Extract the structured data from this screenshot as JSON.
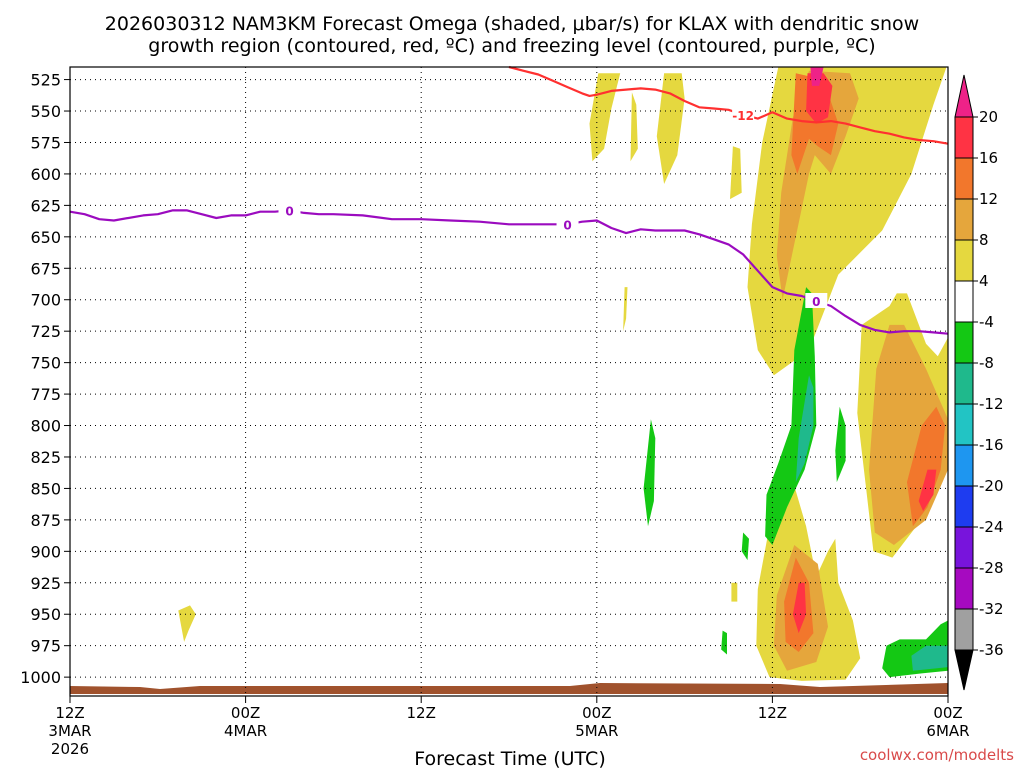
{
  "chart_data": {
    "type": "heatmap",
    "title_line1": "2026030312 NAM3KM Forecast Omega (shaded, μbar/s) for KLAX with dendritic snow",
    "title_line2": "growth region (contoured, red, ºC) and freezing level (contoured, purple, ºC)",
    "xlabel": "Forecast Time (UTC)",
    "credit": "coolwx.com/modelts",
    "ylevels": [
      525,
      550,
      575,
      600,
      625,
      650,
      675,
      700,
      725,
      750,
      775,
      800,
      825,
      850,
      875,
      900,
      925,
      950,
      975,
      1000
    ],
    "ylim": [
      515,
      1015
    ],
    "x_range_hours": [
      0,
      60
    ],
    "x_ticks": [
      {
        "hour": 0,
        "l1": "12Z",
        "l2": "3MAR",
        "l3": "2026"
      },
      {
        "hour": 12,
        "l1": "00Z",
        "l2": "4MAR",
        "l3": ""
      },
      {
        "hour": 24,
        "l1": "12Z",
        "l2": "",
        "l3": ""
      },
      {
        "hour": 36,
        "l1": "00Z",
        "l2": "5MAR",
        "l3": ""
      },
      {
        "hour": 48,
        "l1": "12Z",
        "l2": "",
        "l3": ""
      },
      {
        "hour": 60,
        "l1": "00Z",
        "l2": "6MAR",
        "l3": ""
      }
    ],
    "colorbar": {
      "labels": [
        "20",
        "16",
        "12",
        "8",
        "4",
        "-4",
        "-8",
        "-12",
        "-16",
        "-20",
        "-24",
        "-28",
        "-32",
        "-36"
      ],
      "colors": [
        "#ee2288",
        "#ff3344",
        "#f2772c",
        "#e5a63c",
        "#e5d83f",
        "#ffffff",
        "#14c814",
        "#1fb98c",
        "#22c4c4",
        "#1e96f0",
        "#1e3cf0",
        "#7814dc",
        "#a60ac0",
        "#a0a0a0",
        "#000000"
      ]
    },
    "freezing_level": {
      "name": "freezing level (purple)",
      "label": "0",
      "color": "#9b0bbf",
      "hours": [
        0,
        1,
        2,
        3,
        5,
        6,
        7,
        8,
        9,
        10,
        11,
        12,
        13,
        14,
        15,
        16,
        17,
        18,
        20,
        22,
        24,
        26,
        28,
        30,
        31,
        32,
        34,
        35,
        36,
        37,
        38,
        39,
        40,
        41,
        42,
        43,
        44,
        45,
        46,
        47,
        48,
        49,
        50,
        51,
        52,
        53,
        54,
        55,
        56,
        57,
        58,
        59,
        60
      ],
      "pressure": [
        630,
        632,
        636,
        637,
        633,
        632,
        629,
        629,
        632,
        635,
        633,
        633,
        630,
        630,
        629,
        631,
        632,
        632,
        633,
        636,
        636,
        637,
        638,
        640,
        640,
        640,
        640,
        638,
        637,
        643,
        647,
        644,
        645,
        645,
        645,
        648,
        652,
        656,
        664,
        677,
        690,
        695,
        697,
        701,
        705,
        713,
        720,
        724,
        726,
        725,
        725,
        726,
        727
      ]
    },
    "dgz_contour": {
      "name": "dendritic snow growth region (red)",
      "label": "-12",
      "color": "#ff3030",
      "hours": [
        30,
        31,
        32,
        33,
        34,
        35,
        35.5,
        36,
        37,
        38,
        39,
        40,
        41,
        42,
        43,
        44,
        45,
        46,
        47,
        48,
        49,
        50,
        51,
        52,
        53,
        54,
        55,
        56,
        57,
        58,
        59,
        60
      ],
      "pressure": [
        515,
        518,
        521,
        526,
        531,
        536,
        538,
        537,
        534,
        533,
        532,
        533,
        536,
        542,
        547,
        548,
        549,
        553,
        556,
        551,
        556,
        558,
        559,
        558,
        560,
        563,
        566,
        568,
        571,
        573,
        574,
        576
      ]
    },
    "omega_regions": [
      {
        "value": 4,
        "color": "#e5d83f",
        "pts": [
          [
            36.1,
            520
          ],
          [
            35.5,
            560
          ],
          [
            35.7,
            590
          ],
          [
            36.5,
            580
          ],
          [
            37.0,
            548
          ],
          [
            37.6,
            520
          ]
        ]
      },
      {
        "value": 4,
        "color": "#e5d83f",
        "pts": [
          [
            40.6,
            520
          ],
          [
            40.1,
            570
          ],
          [
            40.6,
            608
          ],
          [
            41.5,
            585
          ],
          [
            42.0,
            540
          ],
          [
            41.8,
            520
          ]
        ]
      },
      {
        "value": 4,
        "color": "#e5d83f",
        "pts": [
          [
            38.4,
            535
          ],
          [
            38.3,
            590
          ],
          [
            38.8,
            580
          ],
          [
            38.7,
            545
          ]
        ]
      },
      {
        "value": 4,
        "color": "#e5d83f",
        "pts": [
          [
            45.3,
            578
          ],
          [
            45.1,
            620
          ],
          [
            45.9,
            615
          ],
          [
            45.8,
            580
          ]
        ]
      },
      {
        "value": 4,
        "color": "#e5d83f",
        "pts": [
          [
            48.4,
            515
          ],
          [
            47.3,
            575
          ],
          [
            46.6,
            640
          ],
          [
            46.3,
            690
          ],
          [
            47.0,
            740
          ],
          [
            48.1,
            760
          ],
          [
            50.5,
            740
          ],
          [
            52.5,
            680
          ],
          [
            55.5,
            645
          ],
          [
            57.5,
            600
          ],
          [
            59.0,
            545
          ],
          [
            59.9,
            515
          ]
        ]
      },
      {
        "value": 4,
        "color": "#e5d83f",
        "pts": [
          [
            37.9,
            690
          ],
          [
            37.8,
            725
          ],
          [
            38.0,
            715
          ],
          [
            38.1,
            690
          ]
        ]
      },
      {
        "value": 4,
        "color": "#e5d83f",
        "pts": [
          [
            54.1,
            720
          ],
          [
            53.8,
            790
          ],
          [
            54.4,
            850
          ],
          [
            54.9,
            900
          ],
          [
            56.2,
            905
          ],
          [
            58.5,
            870
          ],
          [
            60,
            820
          ],
          [
            60,
            730
          ],
          [
            59.3,
            745
          ],
          [
            58.5,
            735
          ],
          [
            57.2,
            695
          ],
          [
            56.5,
            695
          ],
          [
            56.0,
            705
          ]
        ]
      },
      {
        "value": 4,
        "color": "#e5d83f",
        "pts": [
          [
            49.3,
            840
          ],
          [
            47.8,
            880
          ],
          [
            47.0,
            930
          ],
          [
            46.9,
            975
          ],
          [
            47.8,
            1000
          ],
          [
            50.0,
            1003
          ],
          [
            53.0,
            1002
          ],
          [
            54.0,
            985
          ],
          [
            53.5,
            955
          ],
          [
            52.5,
            925
          ],
          [
            52.3,
            890
          ],
          [
            51.8,
            900
          ],
          [
            51.0,
            920
          ],
          [
            50.3,
            880
          ]
        ]
      },
      {
        "value": 4,
        "color": "#e5d83f",
        "pts": [
          [
            45.2,
            925
          ],
          [
            45.2,
            940
          ],
          [
            45.6,
            940
          ],
          [
            45.6,
            925
          ]
        ]
      },
      {
        "value": 4,
        "color": "#e5d83f",
        "pts": [
          [
            7.4,
            947
          ],
          [
            7.8,
            972
          ],
          [
            8.1,
            963
          ],
          [
            8.6,
            950
          ],
          [
            8.2,
            943
          ]
        ]
      },
      {
        "value": 8,
        "color": "#e5a63c",
        "pts": [
          [
            49.4,
            555
          ],
          [
            48.6,
            615
          ],
          [
            48.3,
            665
          ],
          [
            48.7,
            700
          ],
          [
            49.6,
            650
          ],
          [
            50.5,
            600
          ],
          [
            50.9,
            585
          ],
          [
            52.0,
            600
          ],
          [
            53.0,
            570
          ],
          [
            53.9,
            540
          ],
          [
            53.3,
            520
          ],
          [
            50.5,
            518
          ]
        ]
      },
      {
        "value": 8,
        "color": "#e5a63c",
        "pts": [
          [
            55.1,
            755
          ],
          [
            54.6,
            835
          ],
          [
            55.0,
            885
          ],
          [
            56.3,
            895
          ],
          [
            58.5,
            875
          ],
          [
            60,
            835
          ],
          [
            60,
            795
          ],
          [
            58.5,
            755
          ],
          [
            57.0,
            720
          ],
          [
            56.0,
            720
          ]
        ]
      },
      {
        "value": 8,
        "color": "#e5a63c",
        "pts": [
          [
            49.5,
            895
          ],
          [
            48.3,
            935
          ],
          [
            48.1,
            975
          ],
          [
            49.0,
            995
          ],
          [
            51.0,
            988
          ],
          [
            51.8,
            960
          ],
          [
            51.1,
            910
          ]
        ]
      },
      {
        "value": 12,
        "color": "#f2772c",
        "pts": [
          [
            49.6,
            520
          ],
          [
            49.3,
            585
          ],
          [
            49.7,
            600
          ],
          [
            50.5,
            572
          ],
          [
            51.1,
            578
          ],
          [
            52.0,
            585
          ],
          [
            52.5,
            560
          ],
          [
            51.5,
            525
          ]
        ]
      },
      {
        "value": 12,
        "color": "#f2772c",
        "pts": [
          [
            58.2,
            800
          ],
          [
            57.2,
            845
          ],
          [
            57.6,
            880
          ],
          [
            58.6,
            865
          ],
          [
            59.5,
            835
          ],
          [
            59.8,
            800
          ],
          [
            59.2,
            785
          ]
        ]
      },
      {
        "value": 12,
        "color": "#f2772c",
        "pts": [
          [
            49.6,
            905
          ],
          [
            48.8,
            940
          ],
          [
            48.9,
            972
          ],
          [
            49.8,
            980
          ],
          [
            50.8,
            965
          ],
          [
            50.5,
            925
          ]
        ]
      },
      {
        "value": 16,
        "color": "#ff3344",
        "pts": [
          [
            50.4,
            520
          ],
          [
            50.3,
            550
          ],
          [
            51.0,
            560
          ],
          [
            51.8,
            555
          ],
          [
            52.1,
            530
          ],
          [
            51.5,
            520
          ]
        ]
      },
      {
        "value": 16,
        "color": "#ff3344",
        "pts": [
          [
            58.6,
            835
          ],
          [
            58.0,
            860
          ],
          [
            58.3,
            868
          ],
          [
            59.0,
            855
          ],
          [
            59.2,
            835
          ]
        ]
      },
      {
        "value": 16,
        "color": "#ff3344",
        "pts": [
          [
            49.8,
            925
          ],
          [
            49.4,
            950
          ],
          [
            49.8,
            965
          ],
          [
            50.3,
            950
          ],
          [
            50.2,
            925
          ]
        ]
      },
      {
        "value": 20,
        "color": "#ee2288",
        "pts": [
          [
            50.6,
            515
          ],
          [
            50.7,
            530
          ],
          [
            51.2,
            530
          ],
          [
            51.5,
            515
          ]
        ]
      },
      {
        "value": -4,
        "color": "#14c814",
        "pts": [
          [
            50.3,
            690
          ],
          [
            49.5,
            740
          ],
          [
            49.3,
            800
          ],
          [
            48.4,
            830
          ],
          [
            47.6,
            855
          ],
          [
            47.5,
            888
          ],
          [
            48.0,
            895
          ],
          [
            49.0,
            865
          ],
          [
            50.2,
            835
          ],
          [
            51.0,
            800
          ],
          [
            50.9,
            745
          ],
          [
            50.7,
            695
          ]
        ]
      },
      {
        "value": -4,
        "color": "#14c814",
        "pts": [
          [
            52.6,
            785
          ],
          [
            52.3,
            820
          ],
          [
            52.4,
            845
          ],
          [
            53.0,
            828
          ],
          [
            53.0,
            800
          ]
        ]
      },
      {
        "value": -4,
        "color": "#14c814",
        "pts": [
          [
            39.7,
            795
          ],
          [
            39.2,
            850
          ],
          [
            39.5,
            880
          ],
          [
            39.9,
            860
          ],
          [
            40.0,
            810
          ]
        ]
      },
      {
        "value": -4,
        "color": "#14c814",
        "pts": [
          [
            46.0,
            885
          ],
          [
            45.9,
            900
          ],
          [
            46.3,
            907
          ],
          [
            46.4,
            890
          ]
        ]
      },
      {
        "value": -4,
        "color": "#14c814",
        "pts": [
          [
            44.6,
            963
          ],
          [
            44.5,
            978
          ],
          [
            44.9,
            982
          ],
          [
            44.9,
            965
          ]
        ]
      },
      {
        "value": -4,
        "color": "#14c814",
        "pts": [
          [
            55.8,
            975
          ],
          [
            55.5,
            993
          ],
          [
            56.0,
            1000
          ],
          [
            58.2,
            997
          ],
          [
            60,
            995
          ],
          [
            60,
            955
          ],
          [
            59.5,
            958
          ],
          [
            58.5,
            970
          ],
          [
            56.7,
            970
          ]
        ]
      },
      {
        "value": -8,
        "color": "#1fb98c",
        "pts": [
          [
            50.5,
            760
          ],
          [
            49.8,
            810
          ],
          [
            49.6,
            845
          ],
          [
            50.2,
            830
          ],
          [
            50.8,
            800
          ],
          [
            50.8,
            770
          ]
        ]
      },
      {
        "value": -8,
        "color": "#1fb98c",
        "pts": [
          [
            57.5,
            983
          ],
          [
            57.6,
            995
          ],
          [
            60,
            992
          ],
          [
            60,
            975
          ],
          [
            58.5,
            975
          ]
        ]
      }
    ]
  }
}
